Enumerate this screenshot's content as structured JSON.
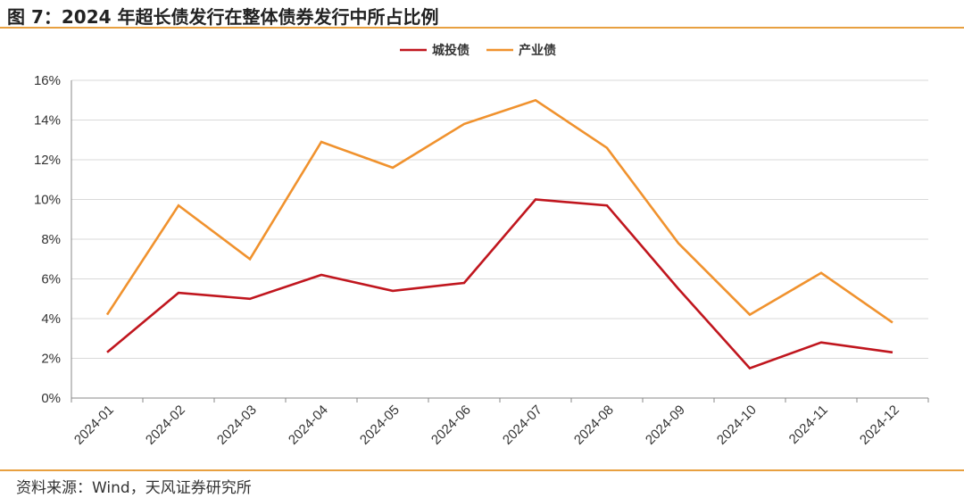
{
  "header": {
    "title": "图 7：2024 年超长债发行在整体债券发行中所占比例"
  },
  "footer": {
    "source": "资料来源：Wind，天风证券研究所"
  },
  "colors": {
    "rule": "#E8A040",
    "grid": "#D9D9D9",
    "axis": "#888888"
  },
  "chart_data": {
    "type": "line",
    "title": "",
    "xlabel": "",
    "ylabel": "",
    "categories": [
      "2024-01",
      "2024-02",
      "2024-03",
      "2024-04",
      "2024-05",
      "2024-06",
      "2024-07",
      "2024-08",
      "2024-09",
      "2024-10",
      "2024-11",
      "2024-12"
    ],
    "ylim": [
      0,
      16
    ],
    "yticks": [
      "0%",
      "2%",
      "4%",
      "6%",
      "8%",
      "10%",
      "12%",
      "14%",
      "16%"
    ],
    "grid": true,
    "legend_position": "top-center",
    "series": [
      {
        "name": "城投债",
        "color": "#C0161E",
        "values": [
          2.3,
          5.3,
          5.0,
          6.2,
          5.4,
          5.8,
          10.0,
          9.7,
          5.5,
          1.5,
          2.8,
          2.3
        ]
      },
      {
        "name": "产业债",
        "color": "#F0922E",
        "values": [
          4.2,
          9.7,
          7.0,
          12.9,
          11.6,
          13.8,
          15.0,
          12.6,
          7.8,
          4.2,
          6.3,
          3.8
        ]
      }
    ]
  }
}
